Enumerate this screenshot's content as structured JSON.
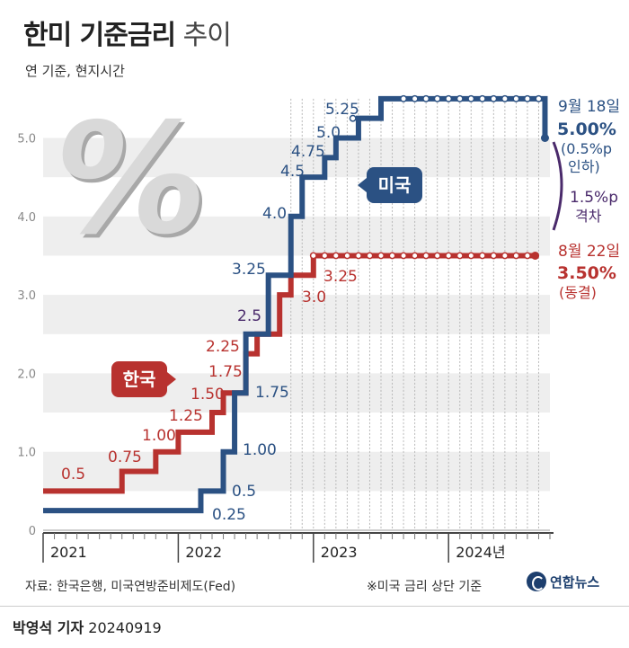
{
  "header": {
    "title_bold": "한미 기준금리",
    "title_light": "추이",
    "subtitle": "연 기준, 현지시간"
  },
  "footer": {
    "source": "자료: 한국은행, 미국연방준비제도(Fed)",
    "note": "※미국 금리 상단 기준",
    "logo_text": "연합뉴스",
    "reporter": "박영석 기자",
    "date": "20240919"
  },
  "colors": {
    "us": "#2b5183",
    "korea": "#b8322f",
    "gap": "#4a2a6b",
    "band": "#eeeeee"
  },
  "chart_data": {
    "type": "line",
    "step": true,
    "ylim": [
      0,
      5.5
    ],
    "yticks": [
      "0",
      "1.0",
      "2.0",
      "3.0",
      "4.0",
      "5.0"
    ],
    "xlabels": [
      "2021",
      "2022",
      "2023",
      "2024년"
    ],
    "series": [
      {
        "name": "미국",
        "key": "us",
        "x": [
          "2021-01",
          "2022-03",
          "2022-05",
          "2022-06",
          "2022-07",
          "2022-09",
          "2022-11",
          "2022-12",
          "2023-02",
          "2023-03",
          "2023-05",
          "2023-07",
          "2024-09-18"
        ],
        "values": [
          0.25,
          0.5,
          1.0,
          1.75,
          2.5,
          3.25,
          4.0,
          4.5,
          4.75,
          5.0,
          5.25,
          5.5,
          5.0
        ],
        "labels": [
          "0.25",
          "0.5",
          "1.00",
          "1.75",
          "2.5",
          "3.25",
          "4.0",
          "4.5",
          "4.75",
          "5.0",
          "5.25"
        ],
        "end_date": "9월 18일",
        "end_value": "5.00%",
        "end_note_1": "(0.5%p",
        "end_note_2": "인하)"
      },
      {
        "name": "한국",
        "key": "korea",
        "x": [
          "2021-01",
          "2021-08",
          "2021-11",
          "2022-01",
          "2022-04",
          "2022-05",
          "2022-07",
          "2022-08",
          "2022-10",
          "2022-11",
          "2023-01",
          "2024-08-22"
        ],
        "values": [
          0.5,
          0.75,
          1.0,
          1.25,
          1.5,
          1.75,
          2.25,
          2.5,
          3.0,
          3.25,
          3.5,
          3.5
        ],
        "labels": [
          "0.5",
          "0.75",
          "1.00",
          "1.25",
          "1.50",
          "1.75",
          "2.25",
          "3.0",
          "3.25"
        ],
        "end_date": "8월 22일",
        "end_value": "3.50%",
        "end_note_1": "(동결)"
      }
    ],
    "gap_label_1": "1.5%p",
    "gap_label_2": "격차",
    "shared_label": "2.5"
  }
}
